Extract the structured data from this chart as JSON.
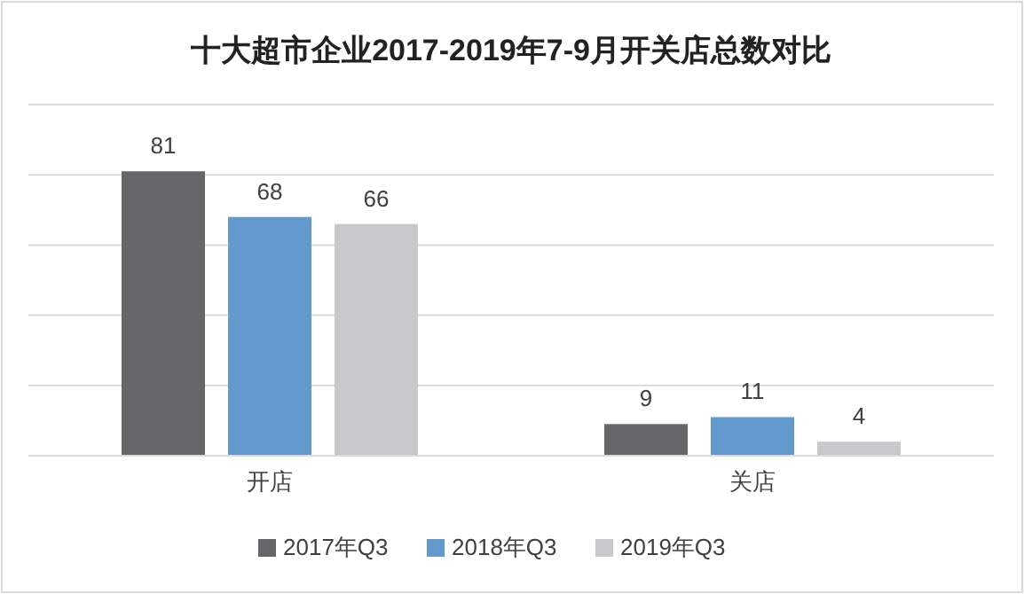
{
  "chart_data": {
    "type": "bar",
    "title": "十大超市企业2017-2019年7-9月开关店总数对比",
    "categories": [
      "开店",
      "关店"
    ],
    "series": [
      {
        "name": "2017年Q3",
        "color": "#666568",
        "values": [
          81,
          9
        ]
      },
      {
        "name": "2018年Q3",
        "color": "#6399cc",
        "values": [
          68,
          11
        ]
      },
      {
        "name": "2019年Q3",
        "color": "#c9c8ca",
        "values": [
          66,
          4
        ]
      }
    ],
    "ylim": [
      0,
      100
    ],
    "yticks": [
      {
        "value": 0,
        "label": null
      },
      {
        "value": 20,
        "label": null
      },
      {
        "value": 40,
        "label": null
      },
      {
        "value": 60,
        "label": null
      },
      {
        "value": 80,
        "label": null
      },
      {
        "value": 100,
        "label": null
      }
    ],
    "grid": "y",
    "data_labels": true,
    "legend": "bottom",
    "tick_labels": "x"
  }
}
